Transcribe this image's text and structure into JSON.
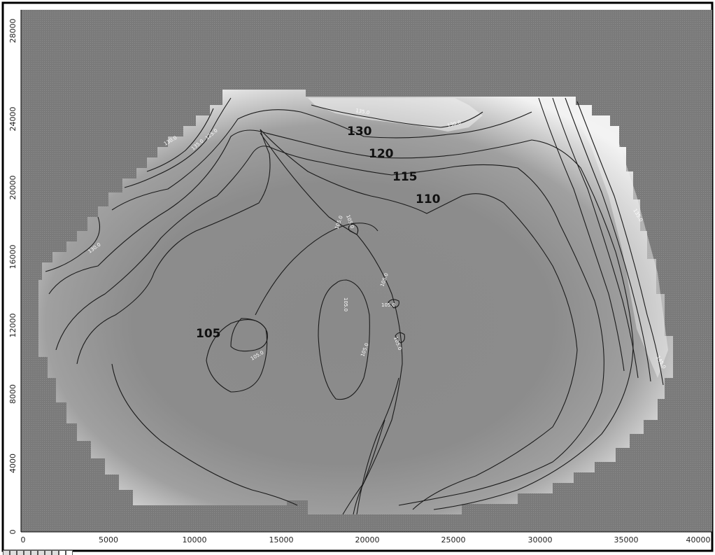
{
  "map": {
    "contour_labels": [
      {
        "text": "130"
      },
      {
        "text": "120"
      },
      {
        "text": "115"
      },
      {
        "text": "110"
      },
      {
        "text": "105"
      }
    ],
    "x_ticks": [
      "0",
      "5000",
      "10000",
      "15000",
      "20000",
      "25000",
      "30000",
      "35000",
      "40000"
    ],
    "y_ticks": [
      "0",
      "4000",
      "8000",
      "12000",
      "16000",
      "20000",
      "24000",
      "28000"
    ],
    "small_labels": [
      "135.0",
      "130.0",
      "130.0",
      "135.0",
      "125.0",
      "130.0",
      "135.0",
      "145.0",
      "105.0",
      "105.0",
      "105.0",
      "105.0",
      "105.0",
      "105.0",
      "105.0",
      "105.0"
    ],
    "colors": {
      "background": "#808080",
      "frame": "#000000",
      "contour": "#1a1a1a"
    }
  }
}
